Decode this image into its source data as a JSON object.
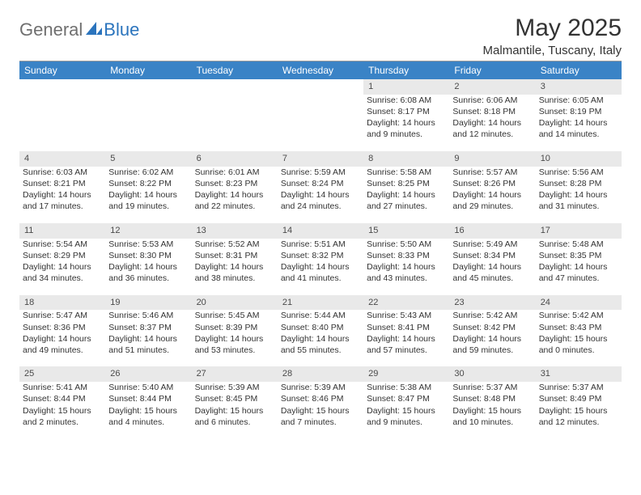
{
  "brand": {
    "general": "General",
    "blue": "Blue"
  },
  "title": "May 2025",
  "location": "Malmantile, Tuscany, Italy",
  "colors": {
    "header_bg": "#3a83c6",
    "header_text": "#ffffff",
    "daynum_bg": "#e9e9e9",
    "text": "#333333",
    "logo_gray": "#6f6f6f",
    "logo_blue": "#2b74bd",
    "gray_line": "#9a9a9a"
  },
  "day_headers": [
    "Sunday",
    "Monday",
    "Tuesday",
    "Wednesday",
    "Thursday",
    "Friday",
    "Saturday"
  ],
  "weeks": [
    [
      null,
      null,
      null,
      null,
      {
        "n": "1",
        "sr": "6:08 AM",
        "ss": "8:17 PM",
        "dl": "14 hours and 9 minutes."
      },
      {
        "n": "2",
        "sr": "6:06 AM",
        "ss": "8:18 PM",
        "dl": "14 hours and 12 minutes."
      },
      {
        "n": "3",
        "sr": "6:05 AM",
        "ss": "8:19 PM",
        "dl": "14 hours and 14 minutes."
      }
    ],
    [
      {
        "n": "4",
        "sr": "6:03 AM",
        "ss": "8:21 PM",
        "dl": "14 hours and 17 minutes."
      },
      {
        "n": "5",
        "sr": "6:02 AM",
        "ss": "8:22 PM",
        "dl": "14 hours and 19 minutes."
      },
      {
        "n": "6",
        "sr": "6:01 AM",
        "ss": "8:23 PM",
        "dl": "14 hours and 22 minutes."
      },
      {
        "n": "7",
        "sr": "5:59 AM",
        "ss": "8:24 PM",
        "dl": "14 hours and 24 minutes."
      },
      {
        "n": "8",
        "sr": "5:58 AM",
        "ss": "8:25 PM",
        "dl": "14 hours and 27 minutes."
      },
      {
        "n": "9",
        "sr": "5:57 AM",
        "ss": "8:26 PM",
        "dl": "14 hours and 29 minutes."
      },
      {
        "n": "10",
        "sr": "5:56 AM",
        "ss": "8:28 PM",
        "dl": "14 hours and 31 minutes."
      }
    ],
    [
      {
        "n": "11",
        "sr": "5:54 AM",
        "ss": "8:29 PM",
        "dl": "14 hours and 34 minutes."
      },
      {
        "n": "12",
        "sr": "5:53 AM",
        "ss": "8:30 PM",
        "dl": "14 hours and 36 minutes."
      },
      {
        "n": "13",
        "sr": "5:52 AM",
        "ss": "8:31 PM",
        "dl": "14 hours and 38 minutes."
      },
      {
        "n": "14",
        "sr": "5:51 AM",
        "ss": "8:32 PM",
        "dl": "14 hours and 41 minutes."
      },
      {
        "n": "15",
        "sr": "5:50 AM",
        "ss": "8:33 PM",
        "dl": "14 hours and 43 minutes."
      },
      {
        "n": "16",
        "sr": "5:49 AM",
        "ss": "8:34 PM",
        "dl": "14 hours and 45 minutes."
      },
      {
        "n": "17",
        "sr": "5:48 AM",
        "ss": "8:35 PM",
        "dl": "14 hours and 47 minutes."
      }
    ],
    [
      {
        "n": "18",
        "sr": "5:47 AM",
        "ss": "8:36 PM",
        "dl": "14 hours and 49 minutes."
      },
      {
        "n": "19",
        "sr": "5:46 AM",
        "ss": "8:37 PM",
        "dl": "14 hours and 51 minutes."
      },
      {
        "n": "20",
        "sr": "5:45 AM",
        "ss": "8:39 PM",
        "dl": "14 hours and 53 minutes."
      },
      {
        "n": "21",
        "sr": "5:44 AM",
        "ss": "8:40 PM",
        "dl": "14 hours and 55 minutes."
      },
      {
        "n": "22",
        "sr": "5:43 AM",
        "ss": "8:41 PM",
        "dl": "14 hours and 57 minutes."
      },
      {
        "n": "23",
        "sr": "5:42 AM",
        "ss": "8:42 PM",
        "dl": "14 hours and 59 minutes."
      },
      {
        "n": "24",
        "sr": "5:42 AM",
        "ss": "8:43 PM",
        "dl": "15 hours and 0 minutes."
      }
    ],
    [
      {
        "n": "25",
        "sr": "5:41 AM",
        "ss": "8:44 PM",
        "dl": "15 hours and 2 minutes."
      },
      {
        "n": "26",
        "sr": "5:40 AM",
        "ss": "8:44 PM",
        "dl": "15 hours and 4 minutes."
      },
      {
        "n": "27",
        "sr": "5:39 AM",
        "ss": "8:45 PM",
        "dl": "15 hours and 6 minutes."
      },
      {
        "n": "28",
        "sr": "5:39 AM",
        "ss": "8:46 PM",
        "dl": "15 hours and 7 minutes."
      },
      {
        "n": "29",
        "sr": "5:38 AM",
        "ss": "8:47 PM",
        "dl": "15 hours and 9 minutes."
      },
      {
        "n": "30",
        "sr": "5:37 AM",
        "ss": "8:48 PM",
        "dl": "15 hours and 10 minutes."
      },
      {
        "n": "31",
        "sr": "5:37 AM",
        "ss": "8:49 PM",
        "dl": "15 hours and 12 minutes."
      }
    ]
  ],
  "labels": {
    "sunrise": "Sunrise: ",
    "sunset": "Sunset: ",
    "daylight": "Daylight: "
  }
}
